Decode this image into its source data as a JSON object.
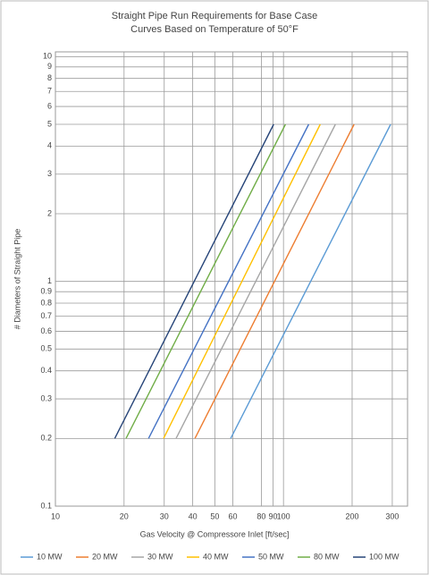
{
  "chart_data": {
    "type": "line",
    "title": "Straight Pipe Run Requirements for Base Case",
    "subtitle": "Curves Based on Temperature of 50°F",
    "x_label": "Gas Velocity @ Compressore Inlet [ft/sec]",
    "y_label": "# Diameters of Straight Pipe",
    "x_scale": "log",
    "y_scale": "log",
    "grid": true,
    "legend": "bottom",
    "xlim": [
      10,
      350
    ],
    "ylim": [
      0.1,
      10.5
    ],
    "xticks": [
      10,
      20,
      30,
      40,
      50,
      60,
      80,
      90,
      100,
      200,
      300
    ],
    "yticks": [
      0.1,
      0.2,
      0.3,
      0.4,
      0.5,
      0.6,
      0.7,
      0.8,
      0.9,
      1,
      2,
      3,
      4,
      5,
      6,
      7,
      8,
      9,
      10
    ],
    "series": [
      {
        "name": "10 MW",
        "color": "#5b9bd5",
        "x": [
          58.7,
          295
        ],
        "values": [
          0.2,
          5
        ]
      },
      {
        "name": "20 MW",
        "color": "#ed7d31",
        "x": [
          40.9,
          204
        ],
        "values": [
          0.2,
          5
        ]
      },
      {
        "name": "30 MW",
        "color": "#a5a5a5",
        "x": [
          33.8,
          169
        ],
        "values": [
          0.2,
          5
        ]
      },
      {
        "name": "40 MW",
        "color": "#ffc000",
        "x": [
          29.8,
          145
        ],
        "values": [
          0.2,
          5
        ]
      },
      {
        "name": "50 MW",
        "color": "#4472c4",
        "x": [
          25.6,
          129
        ],
        "values": [
          0.2,
          5
        ]
      },
      {
        "name": "80 MW",
        "color": "#70ad47",
        "x": [
          20.4,
          102
        ],
        "values": [
          0.2,
          5
        ]
      },
      {
        "name": "100 MW",
        "color": "#264478",
        "x": [
          18.2,
          90.6
        ],
        "values": [
          0.2,
          5
        ]
      }
    ]
  }
}
